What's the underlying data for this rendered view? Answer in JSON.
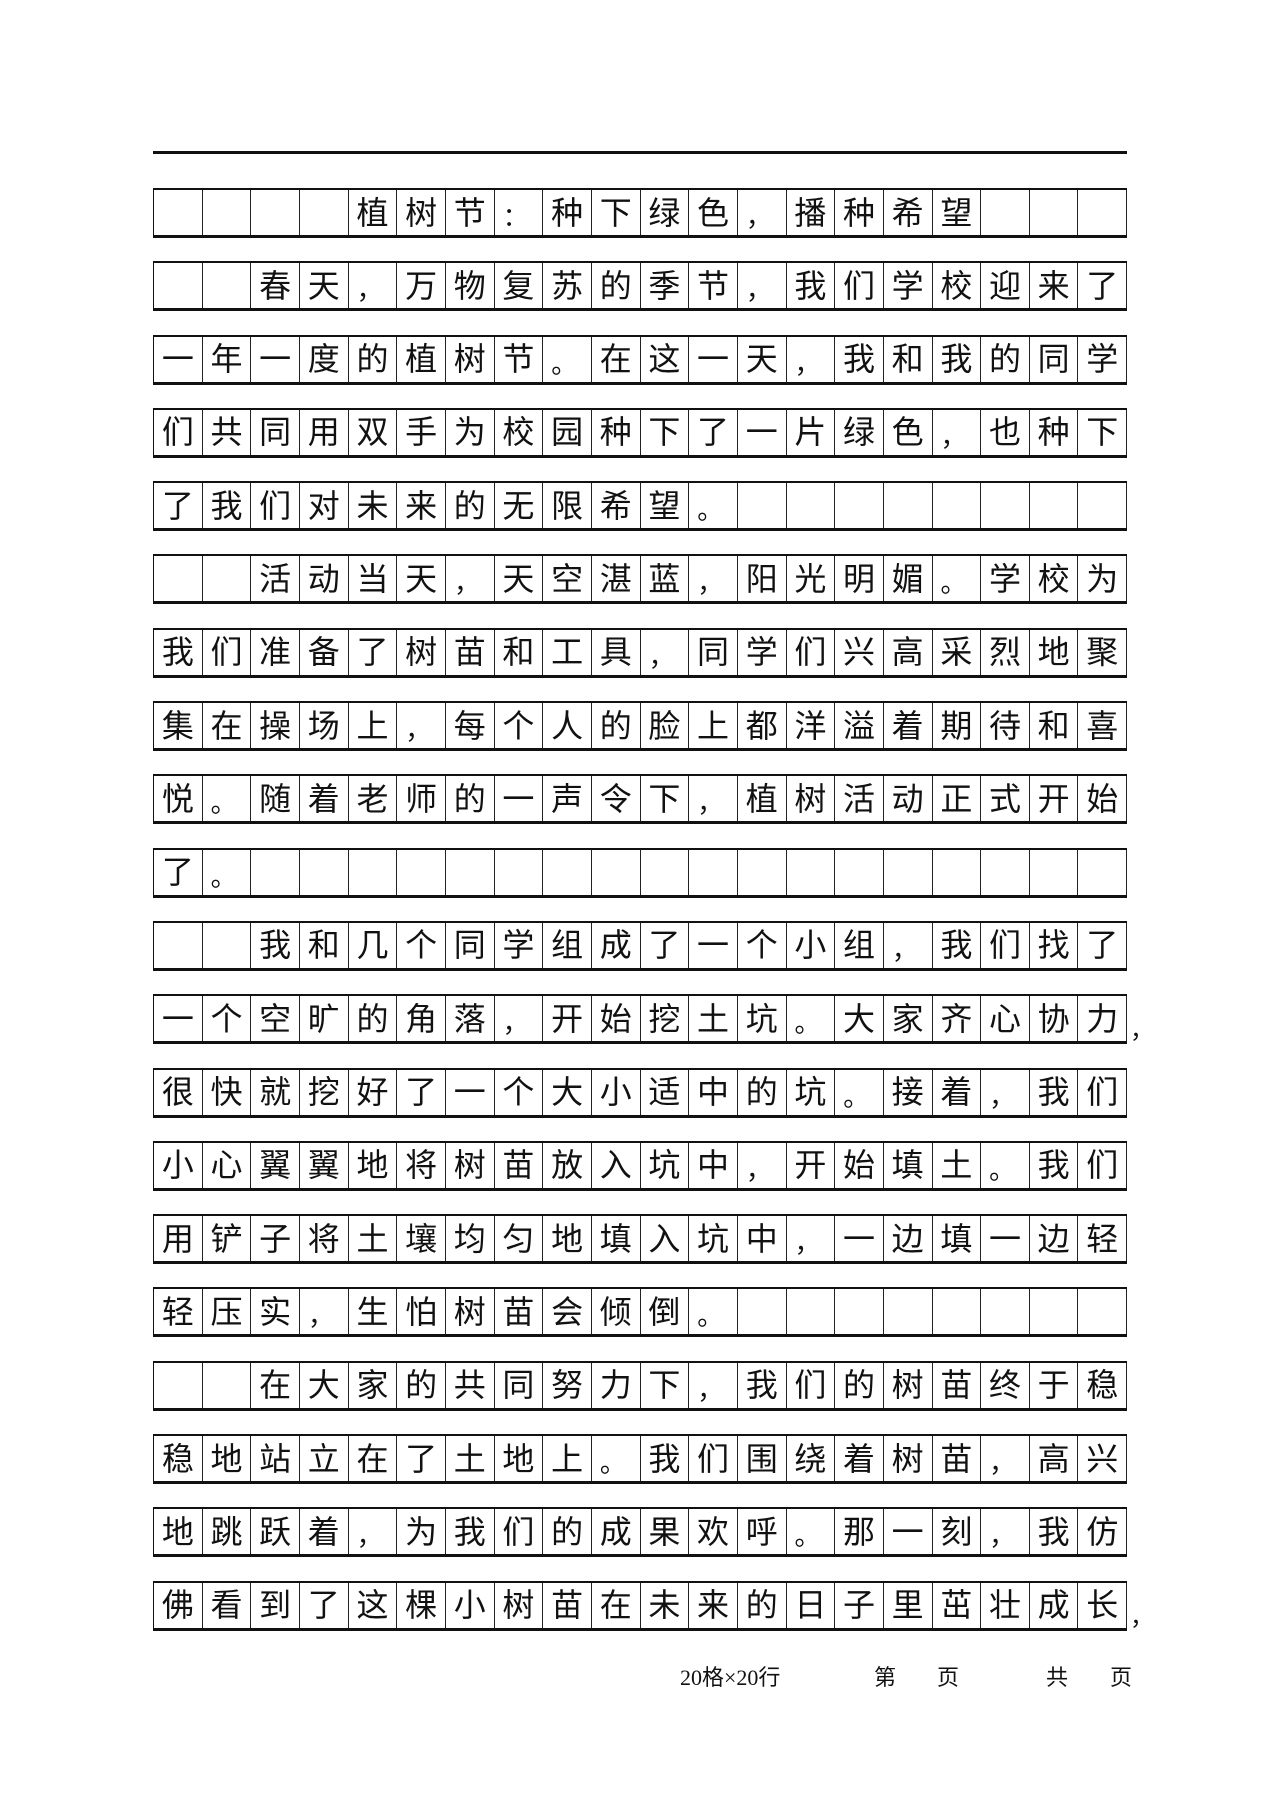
{
  "rows": [
    {
      "cells": [
        " ",
        " ",
        " ",
        " ",
        "植",
        "树",
        "节",
        "：",
        "种",
        "下",
        "绿",
        "色",
        "，",
        "播",
        "种",
        "希",
        "望",
        " ",
        " ",
        " "
      ]
    },
    {
      "cells": [
        " ",
        " ",
        "春",
        "天",
        "，",
        "万",
        "物",
        "复",
        "苏",
        "的",
        "季",
        "节",
        "，",
        "我",
        "们",
        "学",
        "校",
        "迎",
        "来",
        "了"
      ]
    },
    {
      "cells": [
        "一",
        "年",
        "一",
        "度",
        "的",
        "植",
        "树",
        "节",
        "。",
        "在",
        "这",
        "一",
        "天",
        "，",
        "我",
        "和",
        "我",
        "的",
        "同",
        "学"
      ]
    },
    {
      "cells": [
        "们",
        "共",
        "同",
        "用",
        "双",
        "手",
        "为",
        "校",
        "园",
        "种",
        "下",
        "了",
        "一",
        "片",
        "绿",
        "色",
        "，",
        "也",
        "种",
        "下"
      ]
    },
    {
      "cells": [
        "了",
        "我",
        "们",
        "对",
        "未",
        "来",
        "的",
        "无",
        "限",
        "希",
        "望",
        "。",
        " ",
        " ",
        " ",
        " ",
        " ",
        " ",
        " ",
        " "
      ]
    },
    {
      "cells": [
        " ",
        " ",
        "活",
        "动",
        "当",
        "天",
        "，",
        "天",
        "空",
        "湛",
        "蓝",
        "，",
        "阳",
        "光",
        "明",
        "媚",
        "。",
        "学",
        "校",
        "为"
      ]
    },
    {
      "cells": [
        "我",
        "们",
        "准",
        "备",
        "了",
        "树",
        "苗",
        "和",
        "工",
        "具",
        "，",
        "同",
        "学",
        "们",
        "兴",
        "高",
        "采",
        "烈",
        "地",
        "聚"
      ]
    },
    {
      "cells": [
        "集",
        "在",
        "操",
        "场",
        "上",
        "，",
        "每",
        "个",
        "人",
        "的",
        "脸",
        "上",
        "都",
        "洋",
        "溢",
        "着",
        "期",
        "待",
        "和",
        "喜"
      ]
    },
    {
      "cells": [
        "悦",
        "。",
        "随",
        "着",
        "老",
        "师",
        "的",
        "一",
        "声",
        "令",
        "下",
        "，",
        "植",
        "树",
        "活",
        "动",
        "正",
        "式",
        "开",
        "始"
      ]
    },
    {
      "cells": [
        "了",
        "。",
        " ",
        " ",
        " ",
        " ",
        " ",
        " ",
        " ",
        " ",
        " ",
        " ",
        " ",
        " ",
        " ",
        " ",
        " ",
        " ",
        " ",
        " "
      ]
    },
    {
      "cells": [
        " ",
        " ",
        "我",
        "和",
        "几",
        "个",
        "同",
        "学",
        "组",
        "成",
        "了",
        "一",
        "个",
        "小",
        "组",
        "，",
        "我",
        "们",
        "找",
        "了"
      ]
    },
    {
      "cells": [
        "一",
        "个",
        "空",
        "旷",
        "的",
        "角",
        "落",
        "，",
        "开",
        "始",
        "挖",
        "土",
        "坑",
        "。",
        "大",
        "家",
        "齐",
        "心",
        "协",
        "力"
      ],
      "overflow": "，"
    },
    {
      "cells": [
        "很",
        "快",
        "就",
        "挖",
        "好",
        "了",
        "一",
        "个",
        "大",
        "小",
        "适",
        "中",
        "的",
        "坑",
        "。",
        "接",
        "着",
        "，",
        "我",
        "们"
      ]
    },
    {
      "cells": [
        "小",
        "心",
        "翼",
        "翼",
        "地",
        "将",
        "树",
        "苗",
        "放",
        "入",
        "坑",
        "中",
        "，",
        "开",
        "始",
        "填",
        "土",
        "。",
        "我",
        "们"
      ]
    },
    {
      "cells": [
        "用",
        "铲",
        "子",
        "将",
        "土",
        "壤",
        "均",
        "匀",
        "地",
        "填",
        "入",
        "坑",
        "中",
        "，",
        "一",
        "边",
        "填",
        "一",
        "边",
        "轻"
      ]
    },
    {
      "cells": [
        "轻",
        "压",
        "实",
        "，",
        "生",
        "怕",
        "树",
        "苗",
        "会",
        "倾",
        "倒",
        "。",
        " ",
        " ",
        " ",
        " ",
        " ",
        " ",
        " ",
        " "
      ]
    },
    {
      "cells": [
        " ",
        " ",
        "在",
        "大",
        "家",
        "的",
        "共",
        "同",
        "努",
        "力",
        "下",
        "，",
        "我",
        "们",
        "的",
        "树",
        "苗",
        "终",
        "于",
        "稳"
      ]
    },
    {
      "cells": [
        "稳",
        "地",
        "站",
        "立",
        "在",
        "了",
        "土",
        "地",
        "上",
        "。",
        "我",
        "们",
        "围",
        "绕",
        "着",
        "树",
        "苗",
        "，",
        "高",
        "兴"
      ]
    },
    {
      "cells": [
        "地",
        "跳",
        "跃",
        "着",
        "，",
        "为",
        "我",
        "们",
        "的",
        "成",
        "果",
        "欢",
        "呼",
        "。",
        "那",
        "一",
        "刻",
        "，",
        "我",
        "仿"
      ]
    },
    {
      "cells": [
        "佛",
        "看",
        "到",
        "了",
        "这",
        "棵",
        "小",
        "树",
        "苗",
        "在",
        "未",
        "来",
        "的",
        "日",
        "子",
        "里",
        "茁",
        "壮",
        "成",
        "长"
      ],
      "overflow": "，"
    }
  ],
  "footer": {
    "grid_spec": "20格×20行",
    "page_label_1": "第",
    "page_label_2": "页",
    "total_label_1": "共",
    "total_label_2": "页"
  }
}
